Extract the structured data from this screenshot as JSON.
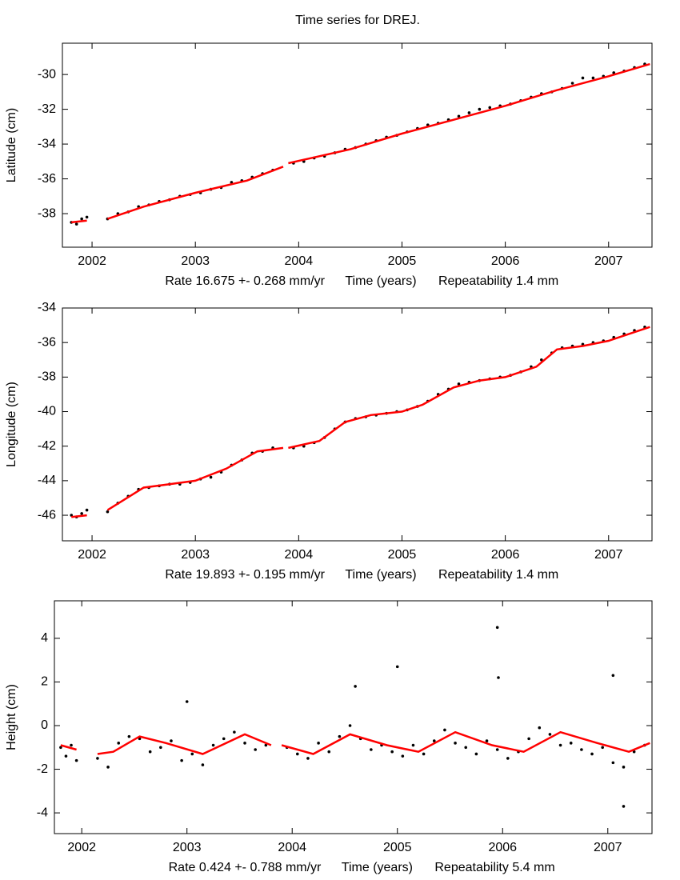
{
  "title": "Time series for DREJ.",
  "chart_data": [
    {
      "type": "scatter",
      "ylabel": "Latitude (cm)",
      "rate_label": "Rate 16.675 +- 0.268 mm/yr",
      "xlabel": "Time (years)",
      "repeatability_label": "Repeatability 1.4 mm",
      "xlim": [
        2001.713,
        2007.42
      ],
      "ylim": [
        -39.93,
        -28.2
      ],
      "xticks": [
        2002,
        2003,
        2004,
        2005,
        2006,
        2007
      ],
      "yticks": [
        -38,
        -36,
        -34,
        -32,
        -30
      ],
      "series": [
        {
          "color": "#000000",
          "x": [
            2001.8,
            2001.85,
            2001.9,
            2001.95,
            2002.15,
            2002.25,
            2002.35,
            2002.45,
            2002.55,
            2002.65,
            2002.75,
            2002.85,
            2002.95,
            2003.05,
            2003.15,
            2003.25,
            2003.35,
            2003.45,
            2003.55,
            2003.65,
            2003.75,
            2003.95,
            2004.05,
            2004.15,
            2004.25,
            2004.35,
            2004.45,
            2004.55,
            2004.65,
            2004.75,
            2004.85,
            2004.95,
            2005.05,
            2005.15,
            2005.25,
            2005.35,
            2005.45,
            2005.55,
            2005.65,
            2005.75,
            2005.85,
            2005.95,
            2006.05,
            2006.15,
            2006.25,
            2006.35,
            2006.45,
            2006.55,
            2006.65,
            2006.75,
            2006.85,
            2006.95,
            2007.05,
            2007.15,
            2007.25,
            2007.35
          ],
          "values": [
            -38.5,
            -38.6,
            -38.3,
            -38.2,
            -38.3,
            -38.0,
            -37.9,
            -37.6,
            -37.5,
            -37.3,
            -37.2,
            -37.0,
            -36.9,
            -36.8,
            -36.6,
            -36.5,
            -36.2,
            -36.1,
            -35.9,
            -35.7,
            -35.5,
            -35.1,
            -35.0,
            -34.8,
            -34.7,
            -34.5,
            -34.3,
            -34.2,
            -34.0,
            -33.8,
            -33.6,
            -33.5,
            -33.3,
            -33.1,
            -32.9,
            -32.8,
            -32.6,
            -32.4,
            -32.2,
            -32.0,
            -31.9,
            -31.8,
            -31.7,
            -31.5,
            -31.3,
            -31.1,
            -31.0,
            -30.8,
            -30.5,
            -30.2,
            -30.2,
            -30.1,
            -29.9,
            -29.8,
            -29.6,
            -29.4
          ]
        },
        {
          "color": "#ff0000",
          "line": true,
          "x": [
            2001.8,
            2001.95,
            null,
            2002.15,
            2002.5,
            2003.0,
            2003.5,
            2003.85,
            null,
            2003.9,
            2004.5,
            2005.0,
            2005.5,
            2006.0,
            2006.5,
            2007.0,
            2007.4
          ],
          "values": [
            -38.5,
            -38.4,
            null,
            -38.3,
            -37.6,
            -36.8,
            -36.1,
            -35.3,
            null,
            -35.1,
            -34.3,
            -33.4,
            -32.6,
            -31.8,
            -30.9,
            -30.1,
            -29.4
          ]
        }
      ]
    },
    {
      "type": "scatter",
      "ylabel": "Longitude (cm)",
      "rate_label": "Rate 19.893 +- 0.195 mm/yr",
      "xlabel": "Time (years)",
      "repeatability_label": "Repeatability 1.4 mm",
      "xlim": [
        2001.713,
        2007.42
      ],
      "ylim": [
        -47.48,
        -34
      ],
      "xticks": [
        2002,
        2003,
        2004,
        2005,
        2006,
        2007
      ],
      "yticks": [
        -46,
        -44,
        -42,
        -40,
        -38,
        -36,
        -34
      ],
      "series": [
        {
          "color": "#000000",
          "x": [
            2001.8,
            2001.85,
            2001.9,
            2001.95,
            2002.15,
            2002.25,
            2002.35,
            2002.45,
            2002.55,
            2002.65,
            2002.75,
            2002.85,
            2002.95,
            2003.05,
            2003.15,
            2003.25,
            2003.35,
            2003.45,
            2003.55,
            2003.65,
            2003.75,
            2003.95,
            2004.05,
            2004.15,
            2004.25,
            2004.35,
            2004.45,
            2004.55,
            2004.65,
            2004.75,
            2004.85,
            2004.95,
            2005.05,
            2005.15,
            2005.25,
            2005.35,
            2005.45,
            2005.55,
            2005.65,
            2005.75,
            2005.85,
            2005.95,
            2006.05,
            2006.15,
            2006.25,
            2006.35,
            2006.45,
            2006.55,
            2006.65,
            2006.75,
            2006.85,
            2006.95,
            2007.05,
            2007.15,
            2007.25,
            2007.35
          ],
          "values": [
            -46.0,
            -46.1,
            -45.9,
            -45.7,
            -45.8,
            -45.3,
            -44.9,
            -44.5,
            -44.4,
            -44.3,
            -44.2,
            -44.2,
            -44.1,
            -43.9,
            -43.8,
            -43.5,
            -43.1,
            -42.8,
            -42.4,
            -42.3,
            -42.1,
            -42.1,
            -42.0,
            -41.8,
            -41.5,
            -41.0,
            -40.6,
            -40.4,
            -40.3,
            -40.2,
            -40.1,
            -40.0,
            -39.9,
            -39.7,
            -39.4,
            -39.0,
            -38.7,
            -38.4,
            -38.3,
            -38.2,
            -38.1,
            -38.0,
            -37.9,
            -37.7,
            -37.4,
            -37.0,
            -36.6,
            -36.3,
            -36.2,
            -36.1,
            -36.0,
            -35.9,
            -35.7,
            -35.5,
            -35.3,
            -35.1
          ]
        },
        {
          "color": "#ff0000",
          "line": true,
          "x": [
            2001.8,
            2001.95,
            null,
            2002.15,
            2002.5,
            2002.75,
            2003.0,
            2003.3,
            2003.6,
            2003.85,
            null,
            2003.9,
            2004.2,
            2004.45,
            2004.7,
            2005.0,
            2005.2,
            2005.5,
            2005.75,
            2006.0,
            2006.3,
            2006.5,
            2006.75,
            2007.0,
            2007.4
          ],
          "values": [
            -46.1,
            -46.0,
            null,
            -45.7,
            -44.4,
            -44.2,
            -44.0,
            -43.3,
            -42.3,
            -42.1,
            null,
            -42.1,
            -41.7,
            -40.6,
            -40.2,
            -40.0,
            -39.6,
            -38.6,
            -38.2,
            -38.0,
            -37.4,
            -36.4,
            -36.2,
            -35.9,
            -35.1
          ]
        }
      ]
    },
    {
      "type": "scatter",
      "ylabel": "Height (cm)",
      "rate_label": "Rate 0.424 +- 0.788 mm/yr",
      "xlabel": "Time (years)",
      "repeatability_label": "Repeatability 5.4 mm",
      "xlim": [
        2001.74,
        2007.42
      ],
      "ylim": [
        -4.95,
        5.72
      ],
      "xticks": [
        2002,
        2003,
        2004,
        2005,
        2006,
        2007
      ],
      "yticks": [
        -4,
        -2,
        0,
        2,
        4
      ],
      "series": [
        {
          "color": "#000000",
          "x": [
            2001.8,
            2001.85,
            2001.9,
            2001.95,
            2002.15,
            2002.25,
            2002.35,
            2002.45,
            2002.55,
            2002.65,
            2002.75,
            2002.85,
            2002.95,
            2003.05,
            2003.15,
            2003.25,
            2003.35,
            2003.45,
            2003.55,
            2003.65,
            2003.75,
            2003.95,
            2004.05,
            2004.15,
            2004.25,
            2004.35,
            2004.45,
            2004.55,
            2004.65,
            2004.75,
            2004.85,
            2004.95,
            2005.05,
            2005.15,
            2005.25,
            2005.35,
            2005.45,
            2005.55,
            2005.65,
            2005.75,
            2005.85,
            2005.95,
            2006.05,
            2006.15,
            2006.25,
            2006.35,
            2006.45,
            2006.55,
            2006.65,
            2006.75,
            2006.85,
            2006.95,
            2007.05,
            2007.15,
            2007.25,
            2007.35,
            2003.0,
            2004.6,
            2005.0,
            2005.95,
            2005.96,
            2007.05,
            2007.15
          ],
          "values": [
            -1.0,
            -1.4,
            -0.9,
            -1.6,
            -1.5,
            -1.9,
            -0.8,
            -0.5,
            -0.6,
            -1.2,
            -1.0,
            -0.7,
            -1.6,
            -1.3,
            -1.8,
            -0.9,
            -0.6,
            -0.3,
            -0.8,
            -1.1,
            -0.9,
            -1.0,
            -1.3,
            -1.5,
            -0.8,
            -1.2,
            -0.5,
            0.0,
            -0.6,
            -1.1,
            -0.9,
            -1.2,
            -1.4,
            -0.9,
            -1.3,
            -0.7,
            -0.2,
            -0.8,
            -1.0,
            -1.3,
            -0.7,
            -1.1,
            -1.5,
            -1.2,
            -0.6,
            -0.1,
            -0.4,
            -0.9,
            -0.8,
            -1.1,
            -1.3,
            -1.0,
            -1.7,
            -1.9,
            -1.2,
            -0.9,
            1.1,
            1.8,
            2.7,
            4.5,
            2.2,
            2.3,
            -3.7
          ]
        },
        {
          "color": "#ff0000",
          "line": true,
          "x": [
            2001.8,
            2001.95,
            null,
            2002.15,
            2002.3,
            2002.55,
            2002.8,
            2003.15,
            2003.55,
            2003.8,
            null,
            2003.9,
            2004.2,
            2004.55,
            2004.9,
            2005.2,
            2005.55,
            2005.9,
            2006.2,
            2006.55,
            2006.9,
            2007.2,
            2007.4
          ],
          "values": [
            -0.9,
            -1.1,
            null,
            -1.3,
            -1.2,
            -0.5,
            -0.8,
            -1.3,
            -0.4,
            -0.9,
            null,
            -0.9,
            -1.3,
            -0.4,
            -0.9,
            -1.2,
            -0.3,
            -0.9,
            -1.2,
            -0.3,
            -0.8,
            -1.2,
            -0.8
          ]
        }
      ]
    }
  ]
}
